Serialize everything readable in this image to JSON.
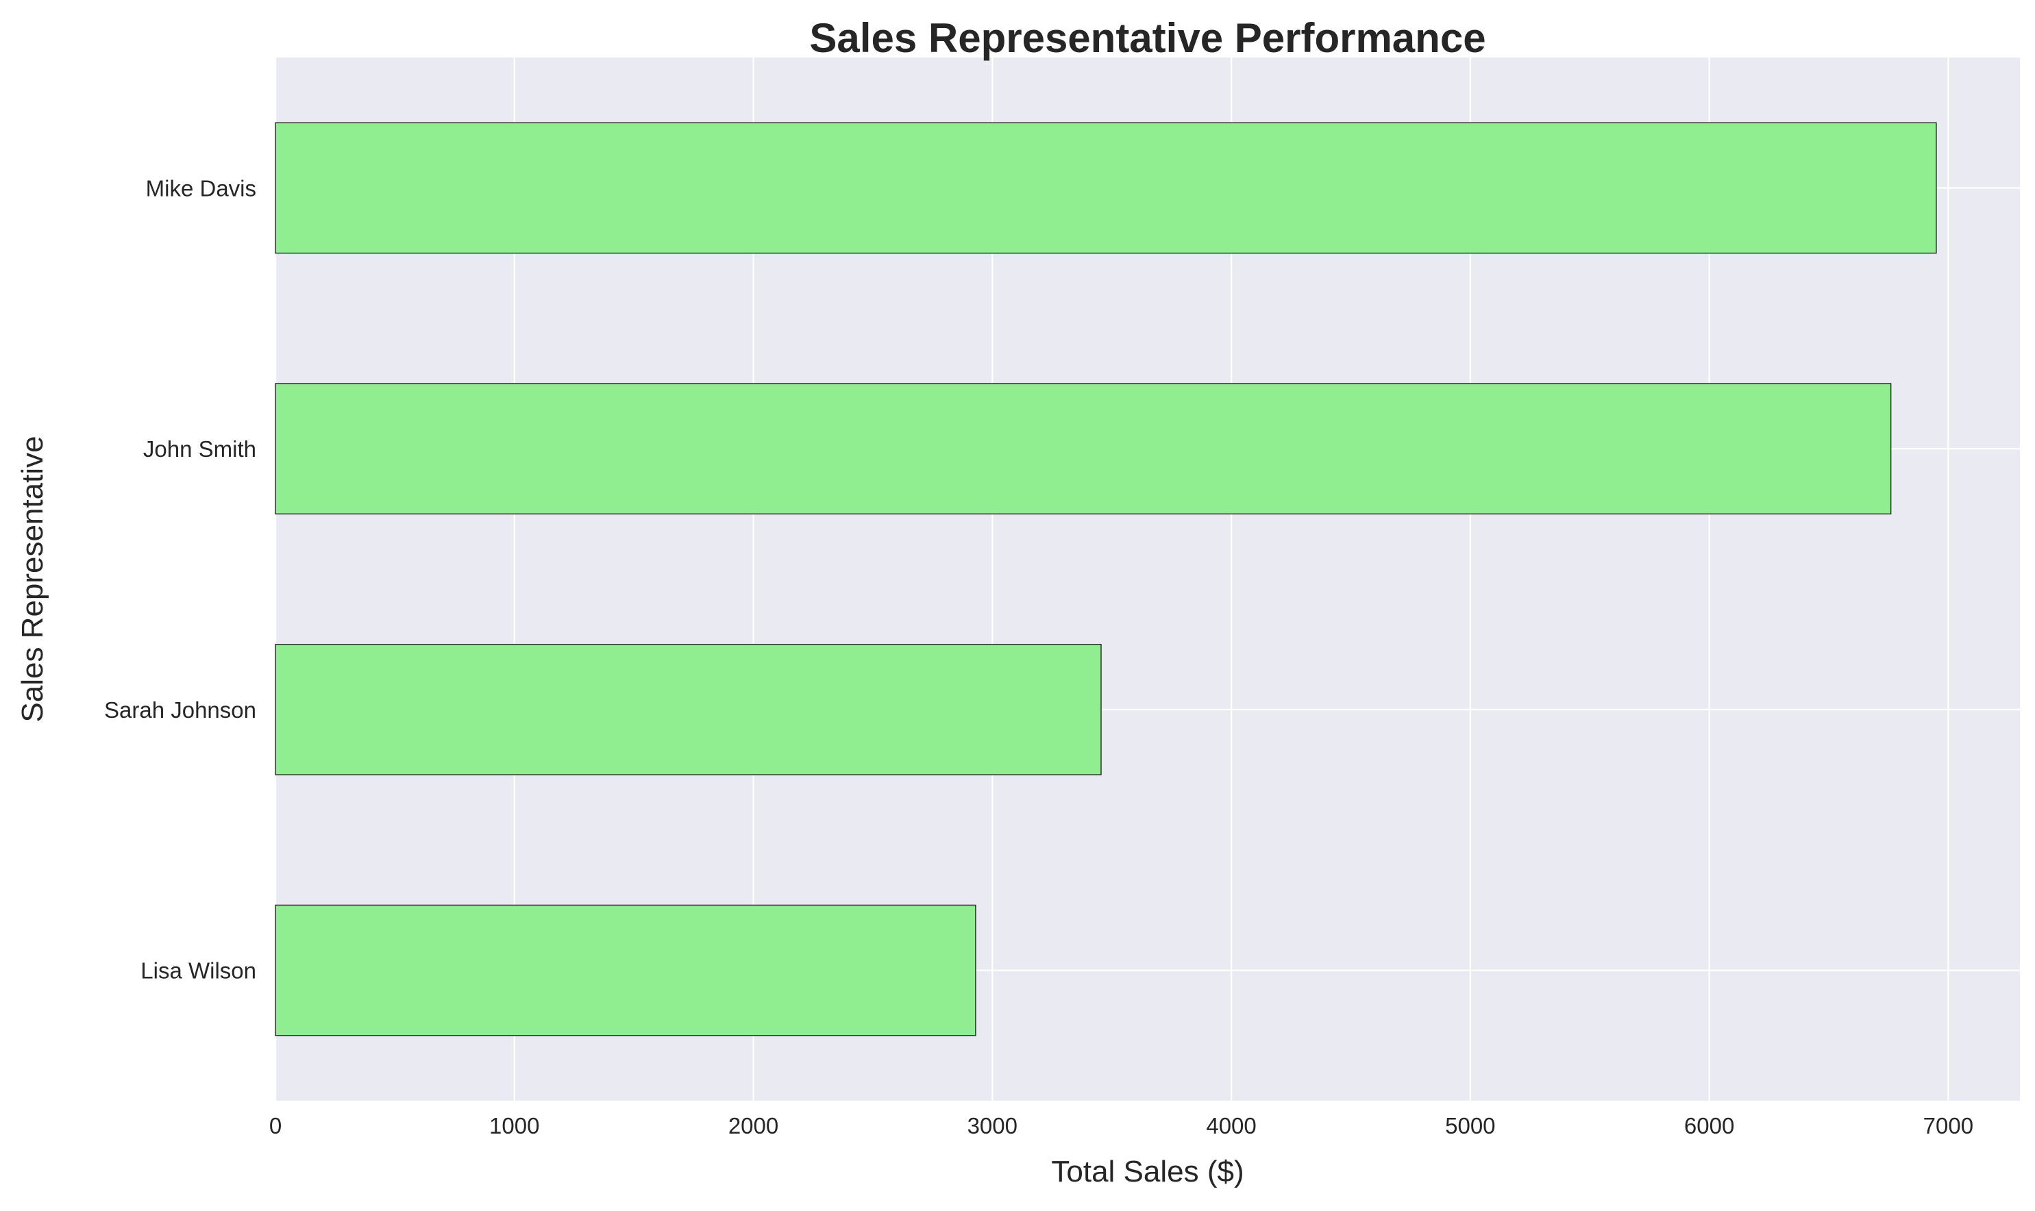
{
  "chart_data": {
    "type": "bar",
    "orientation": "horizontal",
    "title": "Sales Representative Performance",
    "xlabel": "Total Sales ($)",
    "ylabel": "Sales Representative",
    "categories": [
      "Lisa Wilson",
      "Sarah Johnson",
      "John Smith",
      "Mike Davis"
    ],
    "values": [
      2930,
      3455,
      6760,
      6950
    ],
    "xlim": [
      0,
      7300
    ],
    "xticks": [
      0,
      1000,
      2000,
      3000,
      4000,
      5000,
      6000,
      7000
    ],
    "xtick_labels": [
      "0",
      "1000",
      "2000",
      "3000",
      "4000",
      "5000",
      "6000",
      "7000"
    ],
    "grid": true,
    "colors": {
      "bar_fill": "#90ee90",
      "bar_edge": "#262626",
      "plot_background": "#eaeaf2",
      "grid": "#ffffff"
    }
  }
}
